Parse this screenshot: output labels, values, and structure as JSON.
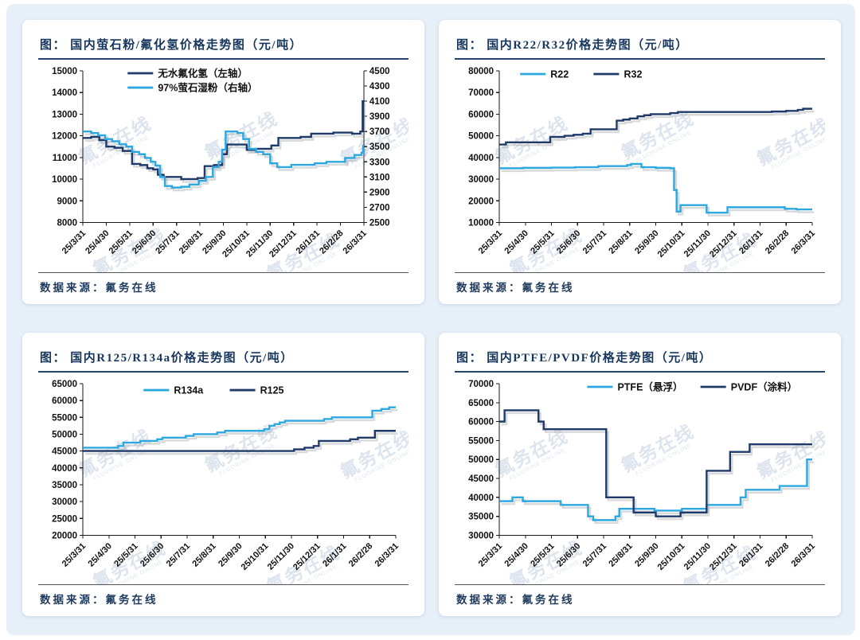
{
  "page": {
    "background": "#e7eff8",
    "card_background": "#ffffff",
    "title_color": "#17365d",
    "axis_text_color": "#111111",
    "series_colors": {
      "light_blue": "#2da7e0",
      "dark_navy": "#1f3a68"
    },
    "watermark": {
      "text": "氟务在线",
      "subtext": "FLUORINE ONLINE"
    },
    "source_label": "数据来源：氟务在线"
  },
  "chart_data": [
    {
      "type": "line",
      "title": "图： 国内萤石粉/氟化氢价格走势图（元/吨）",
      "left_axis": {
        "min": 8000,
        "max": 15000,
        "step": 1000
      },
      "right_axis": {
        "min": 2500,
        "max": 4500,
        "step": 200
      },
      "x_labels": [
        "25/3/31",
        "25/4/30",
        "25/5/31",
        "25/6/30",
        "25/7/31",
        "25/8/31",
        "25/9/30",
        "25/10/31",
        "25/11/30",
        "25/12/31",
        "26/1/31",
        "26/2/28",
        "26/3/31"
      ],
      "legend_position": "top-center-stacked",
      "series": [
        {
          "name": "无水氟化氢（左轴）",
          "axis": "left",
          "color": "dark_navy",
          "points": [
            [
              0,
              11900
            ],
            [
              0.35,
              11950
            ],
            [
              0.7,
              11800
            ],
            [
              1.0,
              11500
            ],
            [
              1.35,
              11450
            ],
            [
              1.7,
              11300
            ],
            [
              2.1,
              10700
            ],
            [
              2.45,
              10650
            ],
            [
              2.75,
              10500
            ],
            [
              3.0,
              10450
            ],
            [
              3.2,
              10200
            ],
            [
              3.45,
              10100
            ],
            [
              4.2,
              10000
            ],
            [
              4.9,
              10050
            ],
            [
              5.2,
              10600
            ],
            [
              5.6,
              10650
            ],
            [
              5.95,
              11150
            ],
            [
              6.15,
              11600
            ],
            [
              7.0,
              11350
            ],
            [
              7.35,
              11400
            ],
            [
              8.05,
              11550
            ],
            [
              8.35,
              11900
            ],
            [
              9.3,
              11950
            ],
            [
              9.75,
              12100
            ],
            [
              10.7,
              12150
            ],
            [
              11.5,
              12100
            ],
            [
              11.85,
              12200
            ],
            [
              11.95,
              13600
            ],
            [
              12,
              13600
            ]
          ]
        },
        {
          "name": "97%萤石湿粉（右轴）",
          "axis": "right",
          "color": "light_blue",
          "points": [
            [
              0,
              3700
            ],
            [
              0.35,
              3680
            ],
            [
              0.65,
              3650
            ],
            [
              0.95,
              3600
            ],
            [
              1.25,
              3570
            ],
            [
              1.55,
              3530
            ],
            [
              1.85,
              3500
            ],
            [
              2.1,
              3430
            ],
            [
              2.4,
              3400
            ],
            [
              2.65,
              3350
            ],
            [
              2.9,
              3300
            ],
            [
              3.1,
              3250
            ],
            [
              3.3,
              3100
            ],
            [
              3.5,
              2980
            ],
            [
              3.8,
              2960
            ],
            [
              4.2,
              2970
            ],
            [
              4.55,
              3000
            ],
            [
              4.95,
              3050
            ],
            [
              5.25,
              3100
            ],
            [
              5.55,
              3230
            ],
            [
              5.8,
              3300
            ],
            [
              5.95,
              3460
            ],
            [
              6.1,
              3700
            ],
            [
              6.6,
              3680
            ],
            [
              6.85,
              3600
            ],
            [
              7.1,
              3470
            ],
            [
              7.4,
              3430
            ],
            [
              7.7,
              3400
            ],
            [
              8.0,
              3280
            ],
            [
              8.3,
              3230
            ],
            [
              8.9,
              3260
            ],
            [
              9.9,
              3280
            ],
            [
              10.4,
              3300
            ],
            [
              11.2,
              3350
            ],
            [
              11.6,
              3390
            ],
            [
              11.9,
              3420
            ],
            [
              11.97,
              3510
            ],
            [
              12,
              3510
            ]
          ]
        }
      ]
    },
    {
      "type": "line",
      "title": "图： 国内R22/R32价格走势图（元/吨）",
      "left_axis": {
        "min": 10000,
        "max": 80000,
        "step": 10000
      },
      "right_axis": null,
      "x_labels": [
        "25/3/31",
        "25/4/30",
        "25/5/31",
        "25/6/30",
        "25/7/31",
        "25/8/31",
        "25/9/30",
        "25/10/31",
        "25/11/30",
        "25/12/31",
        "26/1/31",
        "26/2/28",
        "26/3/31"
      ],
      "legend_position": "top-left-row",
      "series": [
        {
          "name": "R22",
          "axis": "left",
          "color": "light_blue",
          "points": [
            [
              0,
              35000
            ],
            [
              0.9,
              35200
            ],
            [
              2.0,
              35300
            ],
            [
              2.9,
              35500
            ],
            [
              3.8,
              36000
            ],
            [
              4.9,
              36500
            ],
            [
              5.05,
              37000
            ],
            [
              5.45,
              35500
            ],
            [
              6.0,
              35200
            ],
            [
              6.55,
              35000
            ],
            [
              6.7,
              25000
            ],
            [
              6.8,
              15000
            ],
            [
              6.95,
              18000
            ],
            [
              7.8,
              18000
            ],
            [
              7.95,
              14500
            ],
            [
              8.6,
              14500
            ],
            [
              8.75,
              17000
            ],
            [
              10.7,
              17000
            ],
            [
              10.95,
              16300
            ],
            [
              11.4,
              16000
            ],
            [
              12,
              16000
            ]
          ]
        },
        {
          "name": "R32",
          "axis": "left",
          "color": "dark_navy",
          "points": [
            [
              0,
              46000
            ],
            [
              0.25,
              47000
            ],
            [
              1.95,
              49500
            ],
            [
              2.5,
              50000
            ],
            [
              2.85,
              50500
            ],
            [
              3.2,
              51000
            ],
            [
              3.5,
              53000
            ],
            [
              4.5,
              57000
            ],
            [
              4.75,
              57500
            ],
            [
              5.0,
              58000
            ],
            [
              5.3,
              59000
            ],
            [
              5.55,
              59500
            ],
            [
              5.8,
              60000
            ],
            [
              6.55,
              60500
            ],
            [
              6.85,
              61000
            ],
            [
              10.45,
              61200
            ],
            [
              11.0,
              61500
            ],
            [
              11.45,
              62000
            ],
            [
              11.65,
              62500
            ],
            [
              12,
              62500
            ]
          ]
        }
      ]
    },
    {
      "type": "line",
      "title": "图： 国内R125/R134a价格走势图（元/吨）",
      "left_axis": {
        "min": 20000,
        "max": 65000,
        "step": 5000
      },
      "right_axis": null,
      "x_labels": [
        "25/3/31",
        "25/4/30",
        "25/5/31",
        "25/6/30",
        "25/7/31",
        "25/8/31",
        "25/9/30",
        "25/10/31",
        "25/11/30",
        "25/12/31",
        "26/1/31",
        "26/2/28",
        "26/3/31"
      ],
      "legend_position": "top-center-row",
      "series": [
        {
          "name": "R134a",
          "axis": "left",
          "color": "light_blue",
          "points": [
            [
              0,
              46000
            ],
            [
              1.35,
              46500
            ],
            [
              1.55,
              47500
            ],
            [
              2.2,
              48000
            ],
            [
              2.85,
              48500
            ],
            [
              3.05,
              49000
            ],
            [
              3.95,
              49500
            ],
            [
              4.25,
              50000
            ],
            [
              5.15,
              50500
            ],
            [
              5.45,
              51000
            ],
            [
              6.95,
              51500
            ],
            [
              7.15,
              52500
            ],
            [
              7.35,
              53000
            ],
            [
              7.55,
              53500
            ],
            [
              7.75,
              54000
            ],
            [
              9.25,
              54500
            ],
            [
              9.55,
              55000
            ],
            [
              11.1,
              57000
            ],
            [
              11.45,
              57500
            ],
            [
              11.75,
              58000
            ],
            [
              12,
              58000
            ]
          ]
        },
        {
          "name": "R125",
          "axis": "left",
          "color": "dark_navy",
          "points": [
            [
              0,
              45000
            ],
            [
              8.1,
              45500
            ],
            [
              8.5,
              46000
            ],
            [
              8.85,
              46500
            ],
            [
              9.05,
              48000
            ],
            [
              10.25,
              48500
            ],
            [
              10.55,
              49000
            ],
            [
              11.2,
              51000
            ],
            [
              12,
              51000
            ]
          ]
        }
      ]
    },
    {
      "type": "line",
      "title": "图： 国内PTFE/PVDF价格走势图（元/吨）",
      "left_axis": {
        "min": 30000,
        "max": 70000,
        "step": 5000
      },
      "right_axis": null,
      "x_labels": [
        "25/3/31",
        "25/4/30",
        "25/5/31",
        "25/6/30",
        "25/7/31",
        "25/8/31",
        "25/9/30",
        "25/10/31",
        "25/11/30",
        "25/12/31",
        "26/1/31",
        "26/2/28",
        "26/3/31"
      ],
      "legend_position": "top-right-row",
      "series": [
        {
          "name": "PTFE（悬浮）",
          "axis": "left",
          "color": "light_blue",
          "points": [
            [
              0,
              39000
            ],
            [
              0.5,
              40000
            ],
            [
              0.9,
              39000
            ],
            [
              2.35,
              38000
            ],
            [
              3.4,
              35000
            ],
            [
              3.6,
              34000
            ],
            [
              4.45,
              35000
            ],
            [
              4.6,
              37000
            ],
            [
              5.95,
              36500
            ],
            [
              7.0,
              37000
            ],
            [
              7.95,
              38000
            ],
            [
              9.25,
              40000
            ],
            [
              9.45,
              42000
            ],
            [
              10.75,
              43000
            ],
            [
              11.8,
              50000
            ],
            [
              12,
              50000
            ]
          ]
        },
        {
          "name": "PVDF（涂料）",
          "axis": "left",
          "color": "dark_navy",
          "points": [
            [
              0,
              60000
            ],
            [
              0.2,
              63000
            ],
            [
              1.5,
              60000
            ],
            [
              1.7,
              58000
            ],
            [
              4.1,
              40000
            ],
            [
              5.15,
              36000
            ],
            [
              6.0,
              35000
            ],
            [
              6.95,
              36000
            ],
            [
              7.95,
              47000
            ],
            [
              8.85,
              52000
            ],
            [
              9.6,
              54000
            ],
            [
              12,
              54000
            ]
          ]
        }
      ]
    }
  ]
}
